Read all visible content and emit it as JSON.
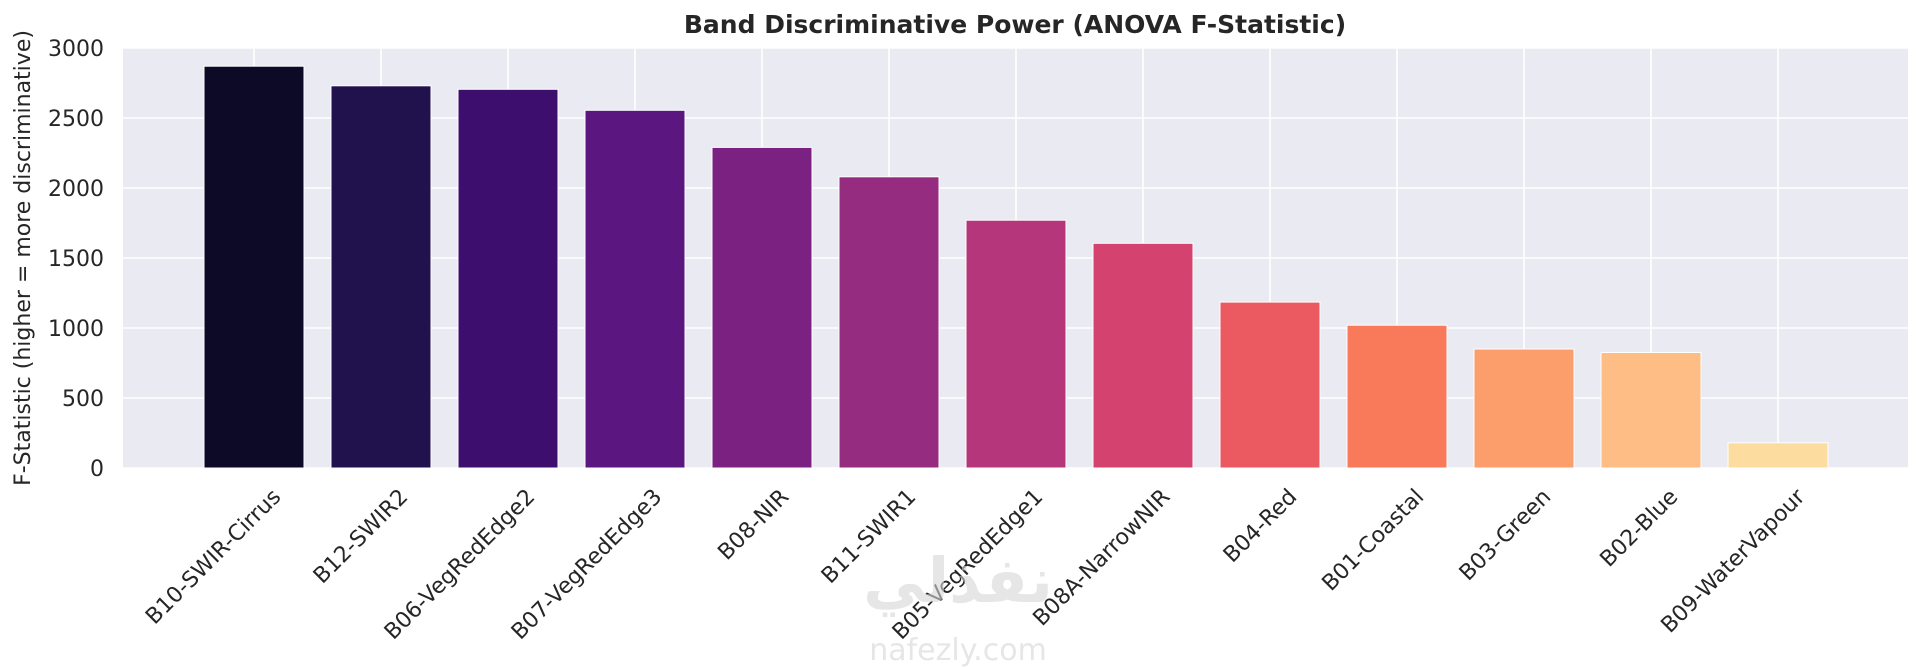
{
  "chart_data": {
    "type": "bar",
    "title": "Band Discriminative Power (ANOVA F-Statistic)",
    "xlabel": "",
    "ylabel": "F-Statistic (higher = more discriminative)",
    "ylim": [
      0,
      3000
    ],
    "yticks": [
      0,
      500,
      1000,
      1500,
      2000,
      2500,
      3000
    ],
    "grid": true,
    "categories": [
      "B10-SWIR-Cirrus",
      "B12-SWIR2",
      "B06-VegRedEdge2",
      "B07-VegRedEdge3",
      "B08-NIR",
      "B11-SWIR1",
      "B05-VegRedEdge1",
      "B08A-NarrowNIR",
      "B04-Red",
      "B01-Coastal",
      "B03-Green",
      "B02-Blue",
      "B09-WaterVapour"
    ],
    "values": [
      2870,
      2730,
      2705,
      2555,
      2290,
      2080,
      1770,
      1605,
      1185,
      1020,
      850,
      825,
      180
    ],
    "colors": [
      "#0d0a28",
      "#21114d",
      "#3e0e6e",
      "#5c1680",
      "#7a2182",
      "#962c80",
      "#b5367a",
      "#d44370",
      "#eb5a60",
      "#f87a5b",
      "#fc9e6b",
      "#fdbd84",
      "#fddca0"
    ]
  },
  "watermark": {
    "arabic": "نفذلي",
    "latin": "nafezly.com"
  }
}
